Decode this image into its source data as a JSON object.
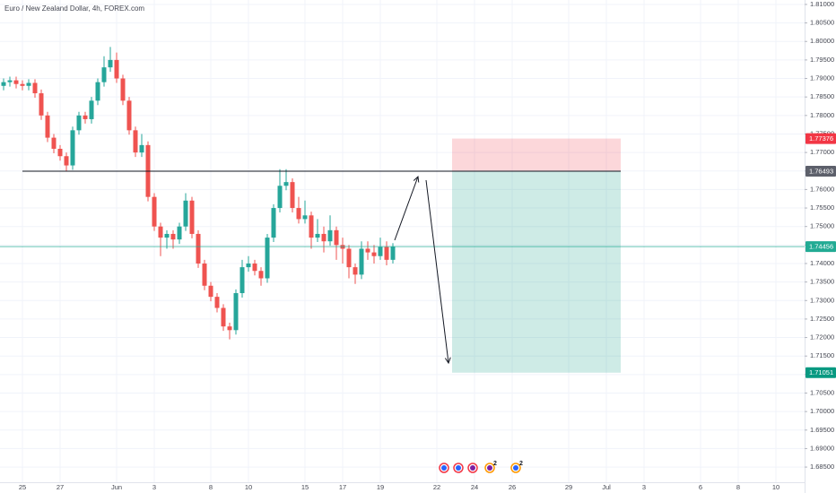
{
  "chart_data": {
    "type": "candlestick",
    "title": "Euro / New Zealand Dollar, 4h, FOREX.com",
    "categories": [
      null,
      null,
      null,
      "25",
      null,
      null,
      null,
      null,
      null,
      "27",
      null,
      null,
      null,
      null,
      null,
      null,
      null,
      null,
      "Jun",
      null,
      null,
      null,
      null,
      null,
      "3",
      null,
      null,
      null,
      null,
      null,
      null,
      null,
      null,
      "8",
      null,
      null,
      null,
      null,
      null,
      "10",
      null,
      null,
      null,
      null,
      null,
      null,
      null,
      null,
      "15",
      null,
      null,
      null,
      null,
      null,
      "17",
      null,
      null,
      null,
      null,
      null,
      "19",
      null,
      null,
      null,
      null,
      null,
      null,
      null,
      null,
      "22",
      null,
      null,
      null,
      null,
      null,
      "24",
      null,
      null,
      null,
      null,
      null,
      "26",
      null,
      null,
      null,
      null,
      null,
      null,
      null,
      null,
      "29",
      null,
      null,
      null,
      null,
      null,
      "Jul",
      null,
      null,
      null,
      null,
      null,
      "3",
      null,
      null,
      null,
      null,
      null,
      null,
      null,
      null,
      "6",
      null,
      null,
      null,
      null,
      null,
      "8",
      null,
      null,
      null,
      null,
      null,
      "10",
      null,
      null,
      null,
      null
    ],
    "open": [
      1.788,
      1.789,
      1.7895,
      1.7885,
      1.788,
      1.7888,
      1.786,
      1.78,
      1.774,
      1.771,
      1.769,
      1.7665,
      1.776,
      1.78,
      1.779,
      1.784,
      1.789,
      1.793,
      1.795,
      1.79,
      1.784,
      1.776,
      1.77,
      1.772,
      1.758,
      1.75,
      1.747,
      1.748,
      1.7465,
      1.75,
      1.757,
      1.748,
      1.74,
      1.734,
      1.731,
      1.728,
      1.723,
      1.722,
      1.732,
      1.739,
      1.74,
      1.738,
      1.736,
      1.747,
      1.755,
      1.761,
      1.762,
      1.755,
      1.752,
      1.753,
      1.747,
      1.748,
      1.746,
      1.749,
      1.745,
      1.744,
      1.739,
      1.737,
      1.744,
      1.743,
      1.742,
      1.7445,
      1.741,
      null,
      null,
      null,
      null,
      null,
      null,
      null,
      null,
      null,
      null,
      null,
      null,
      null,
      null,
      null,
      null,
      null,
      null,
      null,
      null,
      null,
      null,
      null,
      null,
      null,
      null,
      null,
      null,
      null,
      null,
      null,
      null,
      null,
      null,
      null,
      null,
      null,
      null,
      null,
      null,
      null,
      null,
      null,
      null,
      null,
      null,
      null,
      null,
      null,
      null,
      null,
      null,
      null,
      null,
      null,
      null,
      null,
      null,
      null,
      null,
      null,
      null,
      null,
      null,
      null
    ],
    "high": [
      1.79,
      1.7905,
      1.7905,
      1.7895,
      1.7898,
      1.7898,
      1.787,
      1.781,
      1.775,
      1.772,
      1.77,
      1.777,
      1.781,
      1.781,
      1.785,
      1.79,
      1.796,
      1.7985,
      1.797,
      1.791,
      1.785,
      1.777,
      1.775,
      1.773,
      1.759,
      1.751,
      1.749,
      1.749,
      1.751,
      1.759,
      1.758,
      1.749,
      1.741,
      1.735,
      1.732,
      1.729,
      1.724,
      1.733,
      1.741,
      1.742,
      1.741,
      1.739,
      1.748,
      1.756,
      1.7655,
      1.7655,
      1.763,
      1.758,
      1.757,
      1.754,
      1.752,
      1.75,
      1.753,
      1.75,
      1.747,
      1.745,
      1.74,
      1.746,
      1.746,
      1.745,
      1.747,
      1.746,
      1.7455,
      null,
      null,
      null,
      null,
      null,
      null,
      null,
      null,
      null,
      null,
      null,
      null,
      null,
      null,
      null,
      null,
      null,
      null,
      null,
      null,
      null,
      null,
      null,
      null,
      null,
      null,
      null,
      null,
      null,
      null,
      null,
      null,
      null,
      null,
      null,
      null,
      null,
      null,
      null,
      null,
      null,
      null,
      null,
      null,
      null,
      null,
      null,
      null,
      null,
      null,
      null,
      null,
      null,
      null,
      null,
      null,
      null,
      null,
      null,
      null,
      null,
      null,
      null,
      null,
      null
    ],
    "low": [
      1.7868,
      1.7878,
      1.7873,
      1.7868,
      1.7868,
      1.7848,
      1.7788,
      1.7728,
      1.7698,
      1.7678,
      1.765,
      1.7653,
      1.7748,
      1.7778,
      1.7778,
      1.7828,
      1.7878,
      1.7918,
      1.7888,
      1.7828,
      1.7748,
      1.7688,
      1.7688,
      1.7568,
      1.7488,
      1.742,
      1.744,
      1.744,
      1.7453,
      1.7488,
      1.7468,
      1.7388,
      1.7328,
      1.7298,
      1.7268,
      1.7218,
      1.7195,
      1.7208,
      1.7308,
      1.7378,
      1.7368,
      1.734,
      1.7348,
      1.7458,
      1.7538,
      1.7598,
      1.7538,
      1.7508,
      1.7508,
      1.744,
      1.7458,
      1.743,
      1.7448,
      1.741,
      1.74,
      1.736,
      1.7345,
      1.7358,
      1.741,
      1.74,
      1.741,
      1.7395,
      1.74,
      null,
      null,
      null,
      null,
      null,
      null,
      null,
      null,
      null,
      null,
      null,
      null,
      null,
      null,
      null,
      null,
      null,
      null,
      null,
      null,
      null,
      null,
      null,
      null,
      null,
      null,
      null,
      null,
      null,
      null,
      null,
      null,
      null,
      null,
      null,
      null,
      null,
      null,
      null,
      null,
      null,
      null,
      null,
      null,
      null,
      null,
      null,
      null,
      null,
      null,
      null,
      null,
      null,
      null,
      null,
      null,
      null,
      null,
      null,
      null,
      null,
      null,
      null,
      null,
      null
    ],
    "close": [
      1.789,
      1.7895,
      1.7885,
      1.788,
      1.7888,
      1.786,
      1.78,
      1.774,
      1.771,
      1.769,
      1.7665,
      1.776,
      1.78,
      1.779,
      1.784,
      1.789,
      1.793,
      1.795,
      1.79,
      1.784,
      1.776,
      1.77,
      1.772,
      1.758,
      1.75,
      1.747,
      1.748,
      1.7465,
      1.75,
      1.757,
      1.748,
      1.74,
      1.734,
      1.731,
      1.728,
      1.723,
      1.722,
      1.732,
      1.739,
      1.74,
      1.738,
      1.736,
      1.747,
      1.755,
      1.761,
      1.762,
      1.755,
      1.752,
      1.753,
      1.747,
      1.748,
      1.746,
      1.749,
      1.745,
      1.744,
      1.739,
      1.737,
      1.744,
      1.743,
      1.742,
      1.7445,
      1.741,
      1.7446,
      null,
      null,
      null,
      null,
      null,
      null,
      null,
      null,
      null,
      null,
      null,
      null,
      null,
      null,
      null,
      null,
      null,
      null,
      null,
      null,
      null,
      null,
      null,
      null,
      null,
      null,
      null,
      null,
      null,
      null,
      null,
      null,
      null,
      null,
      null,
      null,
      null,
      null,
      null,
      null,
      null,
      null,
      null,
      null,
      null,
      null,
      null,
      null,
      null,
      null,
      null,
      null,
      null,
      null,
      null,
      null,
      null,
      null,
      null,
      null,
      null,
      null,
      null,
      null,
      null
    ],
    "up_color": "#26a69a",
    "down_color": "#ef5350",
    "ylim": [
      1.6809,
      1.8112
    ],
    "yticks": [
      {
        "value": 1.81,
        "label": "1.81000"
      },
      {
        "value": 1.805,
        "label": "1.80500"
      },
      {
        "value": 1.8,
        "label": "1.80000"
      },
      {
        "value": 1.795,
        "label": "1.79500"
      },
      {
        "value": 1.79,
        "label": "1.79000"
      },
      {
        "value": 1.785,
        "label": "1.78500"
      },
      {
        "value": 1.78,
        "label": "1.78000"
      },
      {
        "value": 1.775,
        "label": "1.77500"
      },
      {
        "value": 1.77,
        "label": "1.77000"
      },
      {
        "value": 1.765,
        "label": "1.76500"
      },
      {
        "value": 1.76,
        "label": "1.76000"
      },
      {
        "value": 1.755,
        "label": "1.75500"
      },
      {
        "value": 1.75,
        "label": "1.75000"
      },
      {
        "value": 1.745,
        "label": "1.74500"
      },
      {
        "value": 1.74,
        "label": "1.74000"
      },
      {
        "value": 1.735,
        "label": "1.73500"
      },
      {
        "value": 1.73,
        "label": "1.73000"
      },
      {
        "value": 1.725,
        "label": "1.72500"
      },
      {
        "value": 1.72,
        "label": "1.72000"
      },
      {
        "value": 1.715,
        "label": "1.71500"
      },
      {
        "value": 1.71,
        "label": "1.71000"
      },
      {
        "value": 1.705,
        "label": "1.70500"
      },
      {
        "value": 1.7,
        "label": "1.70000"
      },
      {
        "value": 1.695,
        "label": "1.69500"
      },
      {
        "value": 1.69,
        "label": "1.69000"
      },
      {
        "value": 1.685,
        "label": "1.68500"
      }
    ],
    "grid": true,
    "price_markers": [
      {
        "value": 1.77376,
        "label": "1.77376",
        "color": "#f23645"
      },
      {
        "value": 1.76493,
        "label": "1.76493",
        "color": "#5d606b"
      },
      {
        "value": 1.74456,
        "label": "1.74456",
        "color": "#22ab94"
      },
      {
        "value": 1.71051,
        "label": "1.71051",
        "color": "#089981"
      }
    ],
    "event_badges": [
      2,
      2
    ]
  }
}
